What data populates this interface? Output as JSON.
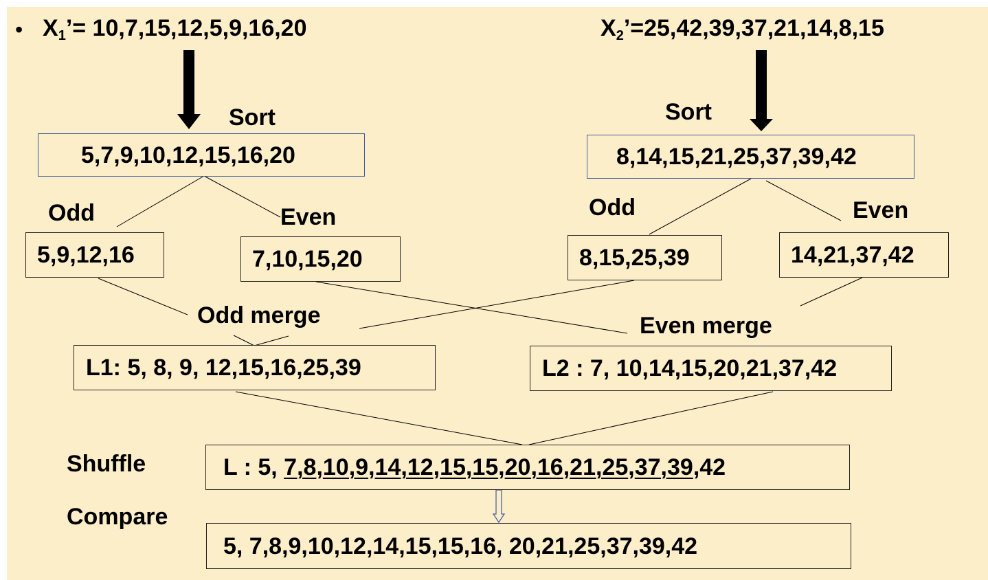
{
  "bullet": "•",
  "x1": {
    "label": "X",
    "sub": "1",
    "rest": "’= 10,7,15,12,5,9,16,20"
  },
  "x2": {
    "label": "X",
    "sub": "2",
    "rest": "’=25,42,39,37,21,14,8,15"
  },
  "sort_label_left": "Sort",
  "sort_label_right": "Sort",
  "sorted_left": "5,7,9,10,12,15,16,20",
  "sorted_right": "8,14,15,21,25,37,39,42",
  "odd_label_left": "Odd",
  "even_label_left": "Even",
  "odd_label_right": "Odd",
  "even_label_right": "Even",
  "odd_left": "5,9,12,16",
  "even_left": "7,10,15,20",
  "odd_right": "8,15,25,39",
  "even_right": "14,21,37,42",
  "odd_merge_label": "Odd merge",
  "even_merge_label": "Even merge",
  "l1": "L1:  5, 8, 9, 12,15,16,25,39",
  "l2": "L2 :  7, 10,14,15,20,21,37,42",
  "shuffle_label": "Shuffle",
  "compare_label": "Compare",
  "shuffle": {
    "prefix": "L : 5, ",
    "pairs": [
      "7,8",
      "10,9",
      "14,12",
      "15,15",
      "20,16",
      "21,25",
      "37,39"
    ],
    "sep": ",",
    "suffix": ",42"
  },
  "final": "5, 7,8,9,10,12,14,15,15,16, 20,21,25,37,39,42"
}
